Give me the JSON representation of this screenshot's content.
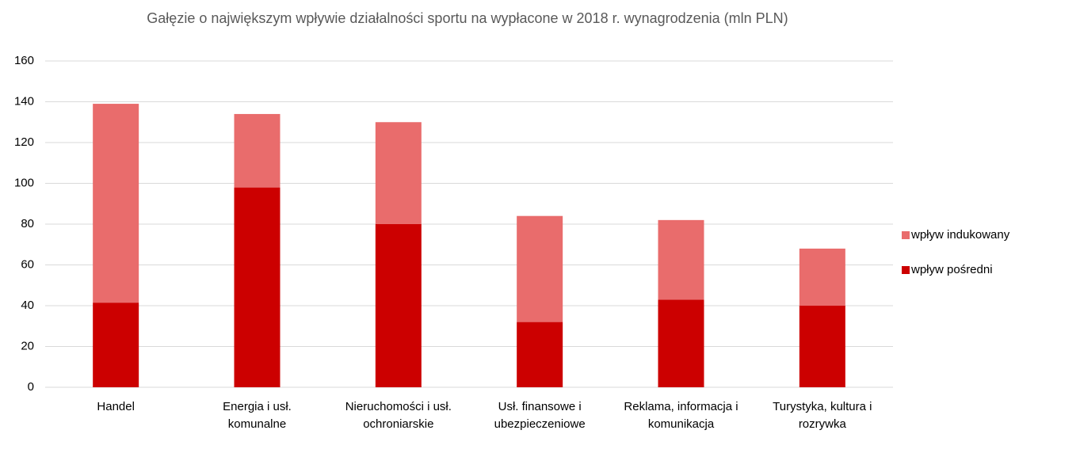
{
  "chart_data": {
    "type": "stacked_bar",
    "title": "Gałęzie o największym wpływie działalności sportu na wypłacone w 2018 r. wynagrodzenia (mln PLN)",
    "categories": [
      "Handel",
      "Energia i usł. komunalne",
      "Nieruchomości i usł. ochroniarskie",
      "Usł. finansowe i ubezpieczeniowe",
      "Reklama, informacja i komunikacja",
      "Turystyka, kultura i rozrywka"
    ],
    "series": [
      {
        "name": "wpływ pośredni",
        "color": "#cc0000",
        "values": [
          41.5,
          98,
          80,
          32,
          43,
          40
        ]
      },
      {
        "name": "wpływ indukowany",
        "color": "#e96c6c",
        "values": [
          97.5,
          36,
          50,
          52,
          39,
          28
        ]
      }
    ],
    "ylim": [
      0,
      160
    ],
    "yticks": [
      0,
      20,
      40,
      60,
      80,
      100,
      120,
      140,
      160
    ],
    "grid": true,
    "legend": "right"
  }
}
